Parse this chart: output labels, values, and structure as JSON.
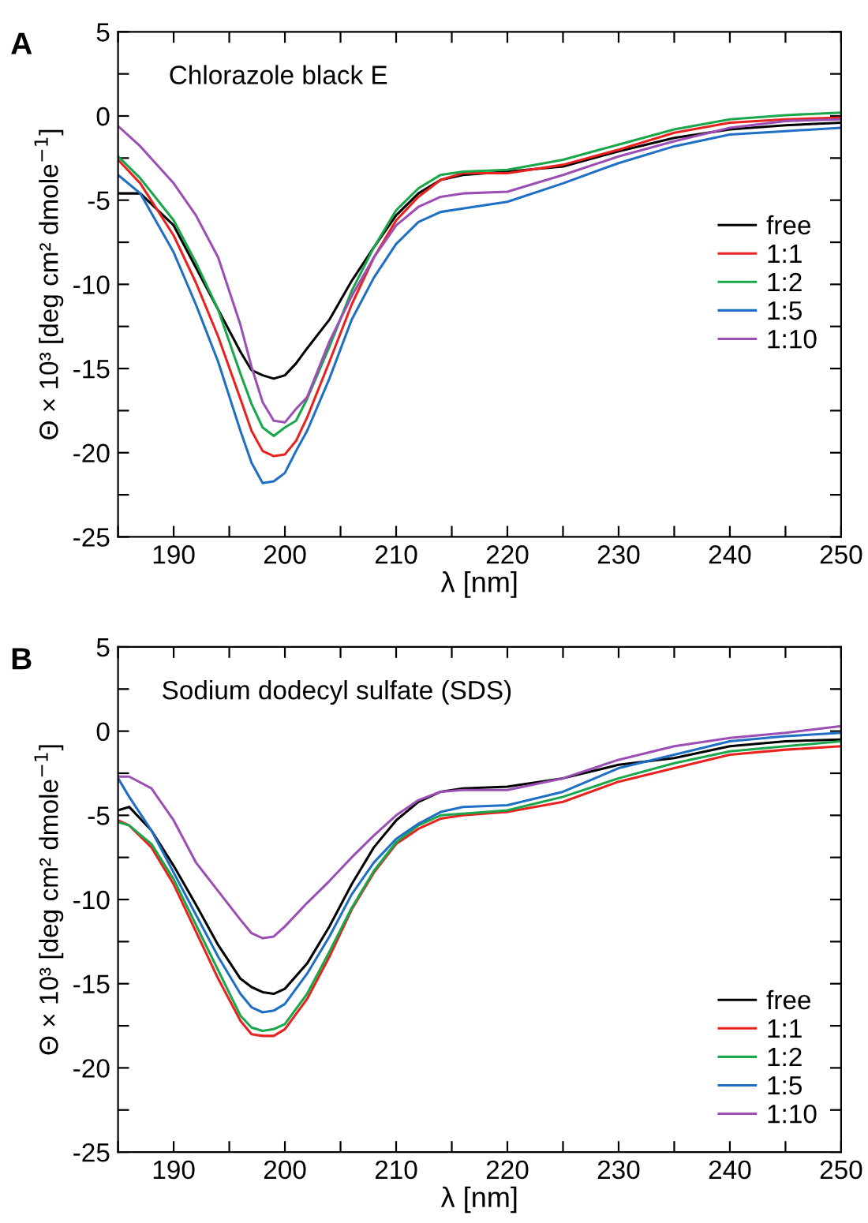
{
  "chart_data": [
    {
      "type": "line",
      "annotations": [
        "A",
        "Chlorazole black E"
      ],
      "xlabel": "λ [nm]",
      "ylabel": "Θ × 10³ [deg cm² dmole$^{−1}$]",
      "x": [
        185,
        187,
        190,
        192,
        194,
        196,
        197,
        198,
        199,
        200,
        201,
        202,
        204,
        206,
        208,
        210,
        212,
        214,
        216,
        220,
        225,
        230,
        235,
        240,
        245,
        250
      ],
      "series": [
        {
          "name": "free",
          "color": "#000000",
          "values": [
            -4.6,
            -4.6,
            -6.5,
            -9,
            -11.5,
            -14,
            -15.1,
            -15.4,
            -15.6,
            -15.4,
            -14.7,
            -13.8,
            -12.1,
            -9.8,
            -7.8,
            -5.9,
            -4.6,
            -3.8,
            -3.5,
            -3.3,
            -3.0,
            -2.1,
            -1.3,
            -0.8,
            -0.55,
            -0.4
          ]
        },
        {
          "name": "1:1",
          "color": "#e8221f",
          "values": [
            -2.6,
            -4,
            -7.1,
            -9.9,
            -13.1,
            -16.8,
            -18.7,
            -19.9,
            -20.2,
            -20.1,
            -19.3,
            -17.9,
            -14.6,
            -11.2,
            -8.4,
            -6.2,
            -4.8,
            -3.8,
            -3.4,
            -3.4,
            -2.9,
            -2.0,
            -1.0,
            -0.4,
            -0.2,
            -0.1
          ]
        },
        {
          "name": "1:2",
          "color": "#1aa64a",
          "values": [
            -2.4,
            -3.7,
            -6.2,
            -8.7,
            -11.5,
            -15.3,
            -17.1,
            -18.5,
            -19,
            -18.5,
            -18.1,
            -16.8,
            -13.7,
            -10.4,
            -7.8,
            -5.6,
            -4.3,
            -3.5,
            -3.3,
            -3.2,
            -2.6,
            -1.7,
            -0.8,
            -0.2,
            0.05,
            0.2
          ]
        },
        {
          "name": "1:5",
          "color": "#1f6fc4",
          "values": [
            -3.5,
            -4.6,
            -8.1,
            -11.2,
            -14.6,
            -18.7,
            -20.6,
            -21.8,
            -21.7,
            -21.2,
            -19.9,
            -18.7,
            -15.6,
            -12.1,
            -9.6,
            -7.6,
            -6.3,
            -5.7,
            -5.5,
            -5.1,
            -4,
            -2.8,
            -1.8,
            -1.1,
            -0.9,
            -0.7
          ]
        },
        {
          "name": "1:10",
          "color": "#9b4fb5",
          "values": [
            -0.6,
            -1.8,
            -4.0,
            -5.9,
            -8.4,
            -12.4,
            -14.9,
            -17,
            -18.1,
            -18.2,
            -17.4,
            -16.7,
            -13.4,
            -10.7,
            -8.4,
            -6.5,
            -5.4,
            -4.8,
            -4.6,
            -4.5,
            -3.5,
            -2.4,
            -1.5,
            -0.7,
            -0.3,
            -0.2
          ]
        }
      ],
      "xlim": [
        185,
        250
      ],
      "ylim": [
        -25,
        5
      ],
      "xticks": [
        {
          "value": 185,
          "label": null
        },
        190,
        {
          "value": 195,
          "label": null
        },
        200,
        {
          "value": 205,
          "label": null
        },
        210,
        {
          "value": 215,
          "label": null
        },
        220,
        {
          "value": 225,
          "label": null
        },
        230,
        {
          "value": 235,
          "label": null
        },
        240,
        {
          "value": 245,
          "label": null
        },
        250
      ],
      "yticks": [
        -25,
        {
          "value": -22.5,
          "label": null
        },
        -20,
        {
          "value": -17.5,
          "label": null
        },
        -15,
        {
          "value": -12.5,
          "label": null
        },
        -10,
        {
          "value": -7.5,
          "label": null
        },
        -5,
        {
          "value": -2.5,
          "label": null
        },
        0,
        {
          "value": 2.5,
          "label": null
        },
        5
      ],
      "legend": "right",
      "grid": false,
      "line_style": "solid"
    },
    {
      "type": "line",
      "annotations": [
        "B",
        "Sodium dodecyl sulfate (SDS)"
      ],
      "xlabel": "λ [nm]",
      "ylabel": "Θ × 10³ [deg cm² dmole$^{−1}$]",
      "x": [
        185,
        186,
        188,
        190,
        192,
        194,
        196,
        197,
        198,
        199,
        200,
        202,
        204,
        206,
        208,
        210,
        212,
        214,
        216,
        220,
        225,
        230,
        235,
        240,
        245,
        250
      ],
      "series": [
        {
          "name": "free",
          "color": "#000000",
          "values": [
            -4.7,
            -4.5,
            -5.9,
            -8,
            -10.3,
            -12.7,
            -14.7,
            -15.2,
            -15.5,
            -15.6,
            -15.3,
            -13.8,
            -11.6,
            -9.1,
            -6.9,
            -5.3,
            -4.2,
            -3.6,
            -3.4,
            -3.3,
            -2.8,
            -2.0,
            -1.6,
            -0.9,
            -0.6,
            -0.5
          ]
        },
        {
          "name": "1:1",
          "color": "#e8221f",
          "values": [
            -5.3,
            -5.6,
            -6.9,
            -9.1,
            -11.9,
            -14.7,
            -17.2,
            -18,
            -18.1,
            -18.1,
            -17.7,
            -15.9,
            -13.4,
            -10.6,
            -8.4,
            -6.7,
            -5.8,
            -5.2,
            -5.0,
            -4.8,
            -4.2,
            -3.0,
            -2.2,
            -1.4,
            -1.1,
            -0.9
          ]
        },
        {
          "name": "1:2",
          "color": "#1aa64a",
          "values": [
            -5.4,
            -5.6,
            -6.7,
            -8.8,
            -11.5,
            -14.2,
            -16.9,
            -17.6,
            -17.8,
            -17.7,
            -17.4,
            -15.6,
            -13.1,
            -10.5,
            -8.3,
            -6.6,
            -5.6,
            -5.0,
            -4.9,
            -4.7,
            -3.9,
            -2.8,
            -1.9,
            -1.2,
            -0.9,
            -0.6
          ]
        },
        {
          "name": "1:5",
          "color": "#1f6fc4",
          "values": [
            -2.8,
            -3.9,
            -5.9,
            -8.4,
            -10.9,
            -13.4,
            -15.6,
            -16.4,
            -16.7,
            -16.6,
            -16.2,
            -14.4,
            -12.2,
            -9.7,
            -7.8,
            -6.4,
            -5.5,
            -4.8,
            -4.5,
            -4.4,
            -3.6,
            -2.2,
            -1.4,
            -0.6,
            -0.3,
            -0.1
          ]
        },
        {
          "name": "1:10",
          "color": "#9b4fb5",
          "values": [
            -2.7,
            -2.7,
            -3.4,
            -5.3,
            -7.8,
            -9.5,
            -11.2,
            -12,
            -12.3,
            -12.2,
            -11.6,
            -10.2,
            -8.9,
            -7.5,
            -6.2,
            -5.0,
            -4.1,
            -3.6,
            -3.5,
            -3.5,
            -2.8,
            -1.7,
            -0.9,
            -0.4,
            -0.1,
            0.3
          ]
        }
      ],
      "xlim": [
        185,
        250
      ],
      "ylim": [
        -25,
        5
      ],
      "xticks": [
        {
          "value": 185,
          "label": null
        },
        190,
        {
          "value": 195,
          "label": null
        },
        200,
        {
          "value": 205,
          "label": null
        },
        210,
        {
          "value": 215,
          "label": null
        },
        220,
        {
          "value": 225,
          "label": null
        },
        230,
        {
          "value": 235,
          "label": null
        },
        240,
        {
          "value": 245,
          "label": null
        },
        250
      ],
      "yticks": [
        -25,
        {
          "value": -22.5,
          "label": null
        },
        -20,
        {
          "value": -17.5,
          "label": null
        },
        -15,
        {
          "value": -12.5,
          "label": null
        },
        -10,
        {
          "value": -7.5,
          "label": null
        },
        -5,
        {
          "value": -2.5,
          "label": null
        },
        0,
        {
          "value": 2.5,
          "label": null
        },
        5
      ],
      "legend": "lower right",
      "grid": false,
      "line_style": "solid"
    }
  ]
}
